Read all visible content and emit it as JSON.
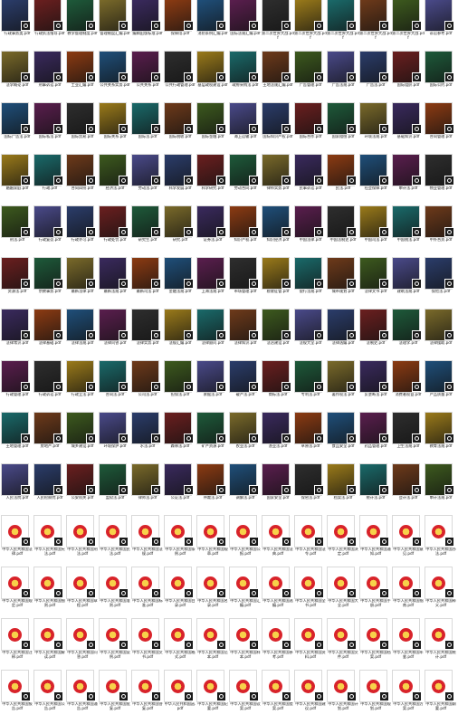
{
  "grid": {
    "columns": 14,
    "rows": 14,
    "file_ext": "pdf",
    "pdf_badge_icon": "pdf-file-icon",
    "emblem_icon": "national-emblem-icon",
    "labels": [
      [
        "行政事务类.pdf",
        "行政执法指导.pdf",
        "教学管理制度.pdf",
        "管理制度汇编.pdf",
        "编辑出版标准.pdf",
        "保障用.pdf",
        "消防条例汇编.pdf",
        "国际法规汇编.pdf",
        "第二次世界大战.pdf",
        "第二次世界大战.pdf",
        "第二次世界大战.pdf",
        "第二次世界大战.pdf",
        "第二次世界大战.pdf",
        "诉讼参考.pdf"
      ],
      [
        "法学概论.pdf",
        "刑事诉讼.pdf",
        "工业汇编.pdf",
        "公共关系实务.pdf",
        "公共关系.pdf",
        "公共行政管理.pdf",
        "基层政权建设.pdf",
        "政府采购法.pdf",
        "土地法规汇编.pdf",
        "广告管理.pdf",
        "广告法规.pdf",
        "广告法.pdf",
        "国际组织.pdf",
        "国际公约.pdf"
      ],
      [
        "国际广告法.pdf",
        "国际私法.pdf",
        "国际贸易.pdf",
        "国际关系.pdf",
        "国际法.pdf",
        "国际税收.pdf",
        "国际金融.pdf",
        "海上运输.pdf",
        "国际知识产权.pdf",
        "国际合作.pdf",
        "国家赔偿.pdf",
        "环境法规.pdf",
        "基础知识.pdf",
        "合同管理.pdf"
      ],
      [
        "婚姻家庭.pdf",
        "行政.pdf",
        "合同纠纷.pdf",
        "经济法.pdf",
        "劳动法.pdf",
        "科学发展.pdf",
        "科学研究.pdf",
        "劳动合同.pdf",
        "律师实务.pdf",
        "民事诉讼.pdf",
        "民法.pdf",
        "社会保障.pdf",
        "审计法.pdf",
        "物业管理.pdf"
      ],
      [
        "刑法.pdf",
        "行政复议.pdf",
        "行政许可.pdf",
        "行政处罚.pdf",
        "研究生.pdf",
        "研究.pdf",
        "证券法.pdf",
        "知识产权.pdf",
        "知识经济.pdf",
        "中国法律.pdf",
        "中国法制史.pdf",
        "中国司法.pdf",
        "中国税法.pdf",
        "中外合资.pdf"
      ],
      [
        "资源法.pdf",
        "宗教事务.pdf",
        "最新法律.pdf",
        "最新法规.pdf",
        "最新司法.pdf",
        "金融法规.pdf",
        "上海法规.pdf",
        "市场管理.pdf",
        "税收征管.pdf",
        "银行法规.pdf",
        "城市规划.pdf",
        "法律文书.pdf",
        "建筑法规.pdf",
        "保险法.pdf"
      ],
      [
        "法律常识.pdf",
        "法律基础.pdf",
        "法律法规.pdf",
        "法律问答.pdf",
        "法律实务.pdf",
        "法规汇编.pdf",
        "法律顾问.pdf",
        "法律知识.pdf",
        "法治建设.pdf",
        "法规大全.pdf",
        "法律选编.pdf",
        "法制史.pdf",
        "法理学.pdf",
        "法律援助.pdf"
      ],
      [
        "行政管理.pdf",
        "行政诉讼.pdf",
        "行政立法.pdf",
        "合同法.pdf",
        "公司法.pdf",
        "担保法.pdf",
        "票据法.pdf",
        "破产法.pdf",
        "商标法.pdf",
        "专利法.pdf",
        "著作权法.pdf",
        "反垄断法.pdf",
        "消费者权益.pdf",
        "产品质量.pdf"
      ],
      [
        "土地管理.pdf",
        "房地产.pdf",
        "城乡建设.pdf",
        "环境保护.pdf",
        "水法.pdf",
        "森林法.pdf",
        "矿产资源.pdf",
        "农业法.pdf",
        "渔业法.pdf",
        "草原法.pdf",
        "食品安全.pdf",
        "药品管理.pdf",
        "卫生法规.pdf",
        "教育法规.pdf"
      ],
      [
        "人民法院.pdf",
        "人民检察院.pdf",
        "公安机关.pdf",
        "监狱法.pdf",
        "律师法.pdf",
        "公证法.pdf",
        "仲裁法.pdf",
        "调解法.pdf",
        "国家安全.pdf",
        "保密法.pdf",
        "档案法.pdf",
        "统计法.pdf",
        "会计法.pdf",
        "审计法规.pdf"
      ],
      [
        "中华人民共和国法律.pdf",
        "中华人民共和国宪法.pdf",
        "中华人民共和国刑法.pdf",
        "中华人民共和国民法.pdf",
        "中华人民共和国法规.pdf",
        "中华人民共和国条例.pdf",
        "中华人民共和国规章.pdf",
        "中华人民共和国公报.pdf",
        "中华人民共和国法典.pdf",
        "中华人民共和国法令.pdf",
        "中华人民共和国决定.pdf",
        "中华人民共和国通知.pdf",
        "中华人民共和国意见.pdf",
        "中华人民共和国办法.pdf"
      ],
      [
        "中华人民共和国规定.pdf",
        "中华人民共和国细则.pdf",
        "中华人民共和国章程.pdf",
        "中华人民共和国准则.pdf",
        "中华人民共和国标准.pdf",
        "中华人民共和国目录.pdf",
        "中华人民共和国名录.pdf",
        "中华人民共和国汇编.pdf",
        "中华人民共和国选编.pdf",
        "中华人民共和国全书.pdf",
        "中华人民共和国大全.pdf",
        "中华人民共和国手册.pdf",
        "中华人民共和国指南.pdf",
        "中华人民共和国释义.pdf"
      ],
      [
        "中华人民共和国注释.pdf",
        "中华人民共和国解读.pdf",
        "中华人民共和国问答.pdf",
        "中华人民共和国案例.pdf",
        "中华人民共和国文书.pdf",
        "中华人民共和国格式.pdf",
        "中华人民共和国范本.pdf",
        "中华人民共和国样本.pdf",
        "中华人民共和国参考.pdf",
        "中华人民共和国资料.pdf",
        "中华人民共和国文件.pdf",
        "中华人民共和国档案.pdf",
        "中华人民共和国年鉴.pdf",
        "中华人民共和国统计.pdf"
      ],
      [
        "中华人民共和国报告.pdf",
        "中华人民共和国公告.pdf",
        "中华人民共和国通告.pdf",
        "中华人民共和国批复.pdf",
        "中华人民共和国答复.pdf",
        "中华人民共和国函.pdf",
        "中华人民共和国纪要.pdf",
        "中华人民共和国议案.pdf",
        "中华人民共和国提案.pdf",
        "中华人民共和国建议.pdf",
        "中华人民共和国计划.pdf",
        "中华人民共和国规划.pdf",
        "中华人民共和国方案.pdf",
        "中华人民共和国纲要.pdf"
      ]
    ],
    "thumb_colors": [
      "#2b3d6b",
      "#6b1f1f",
      "#1e5a3a",
      "#7a6a2a",
      "#3a2a5e",
      "#8c3b12",
      "#1f4f7a",
      "#5a1e4e",
      "#2e2e2e",
      "#9a7a1a",
      "#1a6a6a",
      "#6e3a1a",
      "#3d5a1e",
      "#4a4a8a"
    ]
  }
}
